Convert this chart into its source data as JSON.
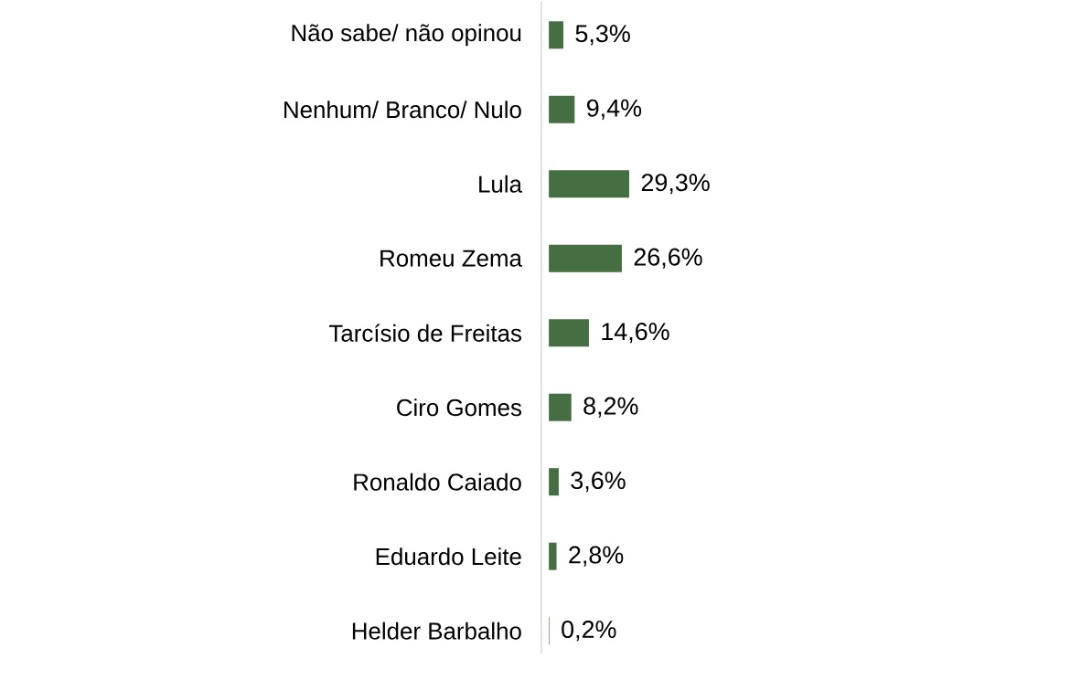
{
  "chart_data": {
    "type": "bar",
    "orientation": "horizontal",
    "categories": [
      "Não sabe/ não opinou",
      "Nenhum/ Branco/ Nulo",
      "Lula",
      "Romeu Zema",
      "Tarcísio de Freitas",
      "Ciro Gomes",
      "Ronaldo Caiado",
      "Eduardo Leite",
      "Helder Barbalho"
    ],
    "values": [
      5.3,
      9.4,
      29.3,
      26.6,
      14.6,
      8.2,
      3.6,
      2.8,
      0.2
    ],
    "value_labels": [
      "5,3%",
      "9,4%",
      "29,3%",
      "26,6%",
      "14,6%",
      "8,2%",
      "3,6%",
      "2,8%",
      "0,2%"
    ],
    "color": "#456f42"
  }
}
